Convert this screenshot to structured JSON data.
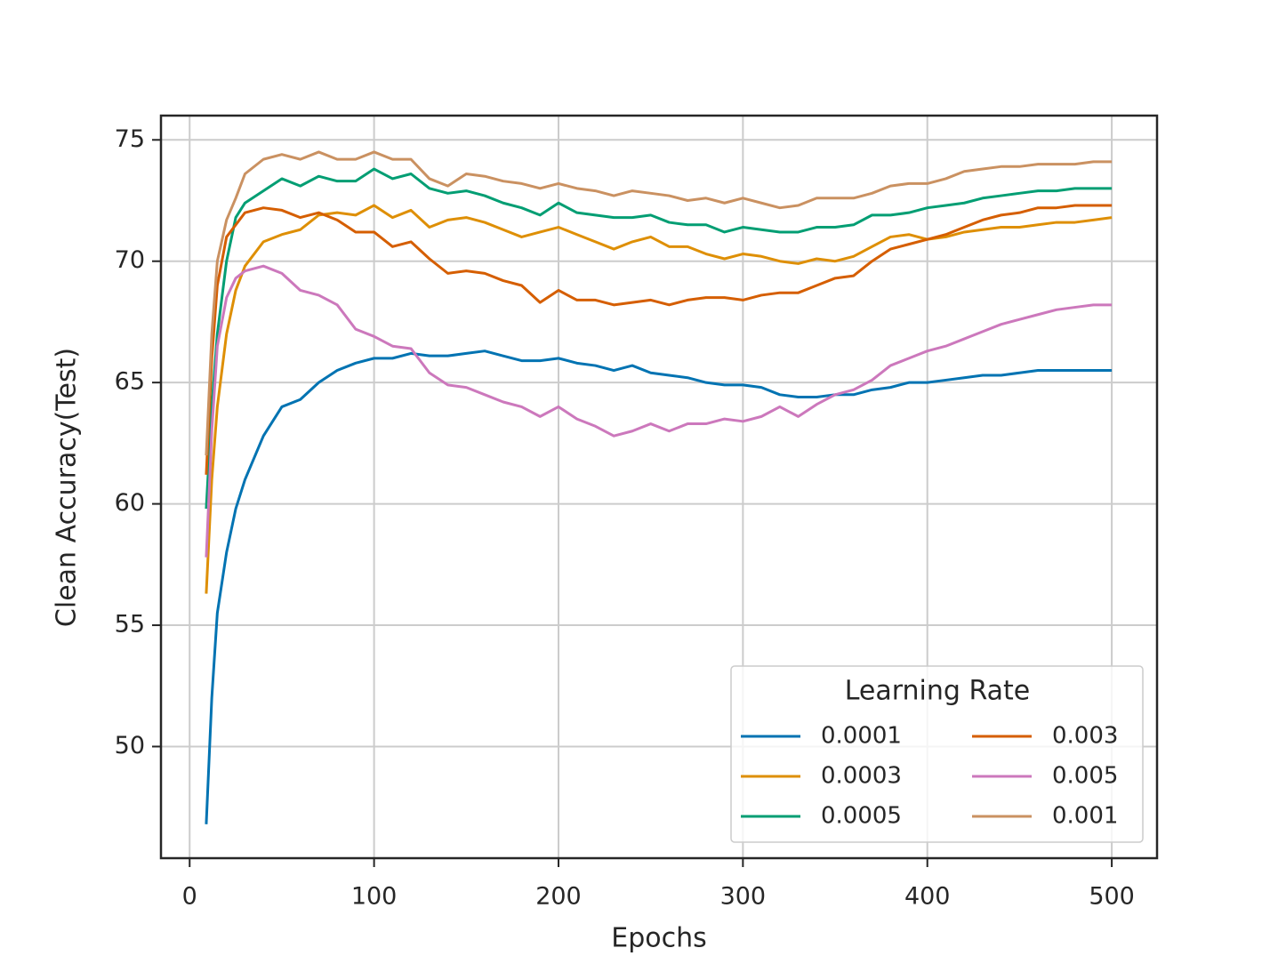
{
  "chart_data": {
    "type": "line",
    "xlabel": "Epochs",
    "ylabel": "Clean Accuracy(Test)",
    "xlim": [
      -15.55,
      524.55
    ],
    "ylim": [
      45.4,
      76.0
    ],
    "xticks": [
      0,
      100,
      200,
      300,
      400,
      500
    ],
    "yticks": [
      50,
      55,
      60,
      65,
      70,
      75
    ],
    "grid": true,
    "legend_title": "Learning Rate",
    "legend_loc": "lower right",
    "legend_columns": 2,
    "x": [
      9,
      12,
      15,
      20,
      25,
      30,
      40,
      50,
      60,
      70,
      80,
      90,
      100,
      110,
      120,
      130,
      140,
      150,
      160,
      170,
      180,
      190,
      200,
      210,
      220,
      230,
      240,
      250,
      260,
      270,
      280,
      290,
      300,
      310,
      320,
      330,
      340,
      350,
      360,
      370,
      380,
      390,
      400,
      410,
      420,
      430,
      440,
      450,
      460,
      470,
      480,
      490,
      500
    ],
    "series": [
      {
        "name": "0.0001",
        "color": "#0173b2",
        "values": [
          46.8,
          52,
          55.5,
          58,
          59.8,
          61,
          62.8,
          64,
          64.3,
          65,
          65.5,
          65.8,
          66,
          66,
          66.2,
          66.1,
          66.1,
          66.2,
          66.3,
          66.1,
          65.9,
          65.9,
          66,
          65.8,
          65.7,
          65.5,
          65.7,
          65.4,
          65.3,
          65.2,
          65,
          64.9,
          64.9,
          64.8,
          64.5,
          64.4,
          64.4,
          64.5,
          64.5,
          64.7,
          64.8,
          65,
          65,
          65.1,
          65.2,
          65.3,
          65.3,
          65.4,
          65.5,
          65.5,
          65.5,
          65.5,
          65.5
        ]
      },
      {
        "name": "0.0003",
        "color": "#de8f05",
        "values": [
          56.3,
          61,
          64,
          67,
          68.8,
          69.8,
          70.8,
          71.1,
          71.3,
          71.9,
          72,
          71.9,
          72.3,
          71.8,
          72.1,
          71.4,
          71.7,
          71.8,
          71.6,
          71.3,
          71,
          71.2,
          71.4,
          71.1,
          70.8,
          70.5,
          70.8,
          71,
          70.6,
          70.6,
          70.3,
          70.1,
          70.3,
          70.2,
          70,
          69.9,
          70.1,
          70,
          70.2,
          70.6,
          71,
          71.1,
          70.9,
          71,
          71.2,
          71.3,
          71.4,
          71.4,
          71.5,
          71.6,
          71.6,
          71.7,
          71.8
        ]
      },
      {
        "name": "0.0005",
        "color": "#029e73",
        "values": [
          59.8,
          64,
          67,
          70,
          71.8,
          72.4,
          72.9,
          73.4,
          73.1,
          73.5,
          73.3,
          73.3,
          73.8,
          73.4,
          73.6,
          73,
          72.8,
          72.9,
          72.7,
          72.4,
          72.2,
          71.9,
          72.4,
          72,
          71.9,
          71.8,
          71.8,
          71.9,
          71.6,
          71.5,
          71.5,
          71.2,
          71.4,
          71.3,
          71.2,
          71.2,
          71.4,
          71.4,
          71.5,
          71.9,
          71.9,
          72,
          72.2,
          72.3,
          72.4,
          72.6,
          72.7,
          72.8,
          72.9,
          72.9,
          73,
          73,
          73
        ]
      },
      {
        "name": "0.003",
        "color": "#d55e00",
        "values": [
          61.2,
          66,
          69,
          71,
          71.5,
          72,
          72.2,
          72.1,
          71.8,
          72,
          71.7,
          71.2,
          71.2,
          70.6,
          70.8,
          70.1,
          69.5,
          69.6,
          69.5,
          69.2,
          69,
          68.3,
          68.8,
          68.4,
          68.4,
          68.2,
          68.3,
          68.4,
          68.2,
          68.4,
          68.5,
          68.5,
          68.4,
          68.6,
          68.7,
          68.7,
          69,
          69.3,
          69.4,
          70,
          70.5,
          70.7,
          70.9,
          71.1,
          71.4,
          71.7,
          71.9,
          72,
          72.2,
          72.2,
          72.3,
          72.3,
          72.3
        ]
      },
      {
        "name": "0.005",
        "color": "#cc78bc",
        "values": [
          57.8,
          63,
          66.5,
          68.5,
          69.3,
          69.6,
          69.8,
          69.5,
          68.8,
          68.6,
          68.2,
          67.2,
          66.9,
          66.5,
          66.4,
          65.4,
          64.9,
          64.8,
          64.5,
          64.2,
          64,
          63.6,
          64,
          63.5,
          63.2,
          62.8,
          63,
          63.3,
          63,
          63.3,
          63.3,
          63.5,
          63.4,
          63.6,
          64,
          63.6,
          64.1,
          64.5,
          64.7,
          65.1,
          65.7,
          66,
          66.3,
          66.5,
          66.8,
          67.1,
          67.4,
          67.6,
          67.8,
          68,
          68.1,
          68.2,
          68.2
        ]
      },
      {
        "name": "0.001",
        "color": "#ca9161",
        "values": [
          62,
          67,
          70,
          71.7,
          72.6,
          73.6,
          74.2,
          74.4,
          74.2,
          74.5,
          74.2,
          74.2,
          74.5,
          74.2,
          74.2,
          73.4,
          73.1,
          73.6,
          73.5,
          73.3,
          73.2,
          73,
          73.2,
          73,
          72.9,
          72.7,
          72.9,
          72.8,
          72.7,
          72.5,
          72.6,
          72.4,
          72.6,
          72.4,
          72.2,
          72.3,
          72.6,
          72.6,
          72.6,
          72.8,
          73.1,
          73.2,
          73.2,
          73.4,
          73.7,
          73.8,
          73.9,
          73.9,
          74,
          74,
          74,
          74.1,
          74.1
        ]
      }
    ]
  }
}
